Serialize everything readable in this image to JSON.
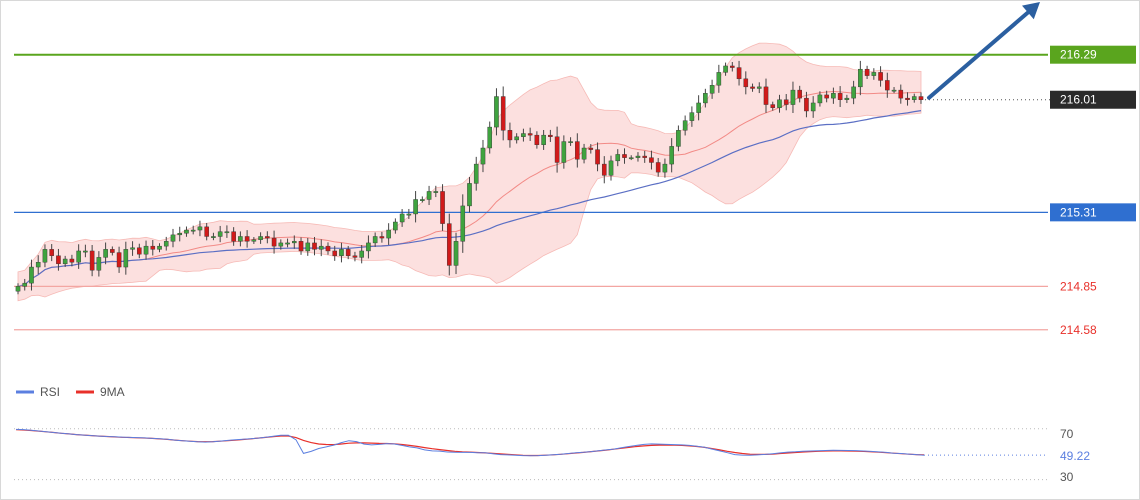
{
  "chart_data": [
    {
      "type": "candlestick",
      "title": "",
      "price_range": [
        214.33,
        216.63
      ],
      "levels": [
        {
          "value": 216.29,
          "label": "216.29",
          "kind": "resistance",
          "color": "#5aa51e"
        },
        {
          "value": 216.01,
          "label": "216.01",
          "kind": "current-price",
          "color": "#2a2a2a"
        },
        {
          "value": 215.31,
          "label": "215.31",
          "kind": "pivot",
          "color": "#2f6fd0"
        },
        {
          "value": 214.85,
          "label": "214.85",
          "kind": "support",
          "color": "#e8302a"
        },
        {
          "value": 214.58,
          "label": "214.58",
          "kind": "support",
          "color": "#e8302a"
        }
      ],
      "closes": [
        214.85,
        214.87,
        214.97,
        215.0,
        215.08,
        215.04,
        214.99,
        215.02,
        215.0,
        215.07,
        215.07,
        214.95,
        215.03,
        215.08,
        215.06,
        214.97,
        215.08,
        215.09,
        215.05,
        215.1,
        215.08,
        215.1,
        215.13,
        215.17,
        215.18,
        215.2,
        215.2,
        215.22,
        215.16,
        215.16,
        215.19,
        215.19,
        215.13,
        215.16,
        215.13,
        215.14,
        215.16,
        215.15,
        215.1,
        215.12,
        215.12,
        215.13,
        215.07,
        215.12,
        215.08,
        215.1,
        215.07,
        215.04,
        215.08,
        215.04,
        215.03,
        215.07,
        215.12,
        215.16,
        215.15,
        215.2,
        215.25,
        215.3,
        215.3,
        215.39,
        215.39,
        215.44,
        215.44,
        215.24,
        214.98,
        215.13,
        215.35,
        215.49,
        215.61,
        215.71,
        215.84,
        216.03,
        215.82,
        215.76,
        215.78,
        215.8,
        215.79,
        215.73,
        215.79,
        215.78,
        215.62,
        215.75,
        215.75,
        215.64,
        215.71,
        215.7,
        215.61,
        215.54,
        215.63,
        215.67,
        215.65,
        215.65,
        215.66,
        215.65,
        215.62,
        215.56,
        215.61,
        215.72,
        215.82,
        215.88,
        215.93,
        215.99,
        216.05,
        216.1,
        216.18,
        216.22,
        216.21,
        216.14,
        216.09,
        216.08,
        216.09,
        215.98,
        215.96,
        216.01,
        215.98,
        216.07,
        216.02,
        215.94,
        215.99,
        216.04,
        216.02,
        216.05,
        216.01,
        216.02,
        216.09,
        216.2,
        216.16,
        216.18,
        216.13,
        216.07,
        216.07,
        216.02,
        216.01,
        216.03,
        216.01
      ],
      "bollinger_bands": true,
      "moving_averages": [
        {
          "name": "",
          "color": "#5b6fc4"
        },
        {
          "name": "",
          "color": "#f28a86"
        }
      ],
      "forecast_arrow": {
        "direction": "up",
        "color": "#2b5fa0"
      }
    },
    {
      "type": "line",
      "title": "",
      "legend": [
        {
          "name": "RSI",
          "color": "#5b7fe0"
        },
        {
          "name": "9MA",
          "color": "#e8302a"
        }
      ],
      "legend_position": "top-left",
      "ylim": [
        25,
        80
      ],
      "yticks": [
        {
          "value": 70,
          "label": "70"
        },
        {
          "value": 30,
          "label": "30"
        }
      ],
      "current_value": {
        "value": 49.22,
        "label": "49.22",
        "color": "#5b7fe0"
      },
      "rsi_values": [
        69.5,
        69.3,
        68.8,
        68.2,
        67.6,
        67.0,
        66.5,
        65.9,
        65.4,
        65.0,
        64.6,
        64.2,
        63.9,
        63.7,
        63.4,
        63.2,
        63.0,
        62.8,
        62.4,
        62.1,
        61.7,
        61.1,
        60.6,
        60.1,
        59.7,
        59.5,
        59.7,
        60.3,
        60.8,
        61.3,
        61.7,
        62.2,
        62.6,
        63.3,
        64.1,
        64.8,
        64.9,
        61.3,
        50.6,
        52.2,
        54.5,
        55.7,
        57.1,
        59.1,
        60.6,
        59.9,
        57.9,
        57.3,
        57.7,
        58.3,
        58.0,
        56.9,
        55.7,
        54.9,
        53.4,
        52.6,
        52.4,
        51.7,
        51.5,
        51.4,
        51.4,
        51.2,
        51.1,
        50.4,
        49.7,
        49.4,
        49.1,
        48.9,
        48.8,
        48.9,
        49.2,
        49.6,
        50.0,
        50.5,
        51.1,
        51.5,
        52.0,
        52.7,
        53.4,
        54.0,
        55.0,
        56.0,
        56.9,
        57.7,
        58.1,
        57.9,
        57.7,
        57.5,
        57.3,
        56.9,
        56.2,
        55.4,
        54.0,
        52.6,
        51.2,
        49.7,
        49.3,
        49.1,
        49.4,
        49.8,
        50.4,
        51.0,
        51.6,
        51.9,
        52.3,
        52.5,
        52.7,
        52.9,
        53.1,
        53.0,
        52.9,
        52.8,
        52.5,
        52.2,
        51.8,
        51.4,
        50.8,
        50.5,
        50.1,
        49.7,
        49.22
      ],
      "ma9_values": [
        69.3,
        69.0,
        68.6,
        68.1,
        67.6,
        67.0,
        66.4,
        65.9,
        65.4,
        65.0,
        64.6,
        64.2,
        63.9,
        63.6,
        63.3,
        63.1,
        62.9,
        62.7,
        62.4,
        62.0,
        61.6,
        61.1,
        60.6,
        60.2,
        59.9,
        59.8,
        59.9,
        60.2,
        60.6,
        61.0,
        61.5,
        62.0,
        62.6,
        63.2,
        63.8,
        64.3,
        64.3,
        63.0,
        60.8,
        59.1,
        58.0,
        57.6,
        57.5,
        58.0,
        58.6,
        58.9,
        58.9,
        58.7,
        58.5,
        58.4,
        58.1,
        57.6,
        56.9,
        56.1,
        55.2,
        54.3,
        53.6,
        52.9,
        52.3,
        51.9,
        51.6,
        51.3,
        51.0,
        50.6,
        50.2,
        49.8,
        49.4,
        49.1,
        49.0,
        49.0,
        49.2,
        49.5,
        49.9,
        50.4,
        50.9,
        51.4,
        52.0,
        52.6,
        53.2,
        53.9,
        54.6,
        55.3,
        56.0,
        56.5,
        56.9,
        57.1,
        57.2,
        57.1,
        56.9,
        56.5,
        56.0,
        55.3,
        54.4,
        53.4,
        52.3,
        51.3,
        50.5,
        50.0,
        49.8,
        49.8,
        50.1,
        50.5,
        50.9,
        51.3,
        51.7,
        52.0,
        52.3,
        52.5,
        52.6,
        52.6,
        52.5,
        52.4,
        52.2,
        51.9,
        51.6,
        51.2,
        50.8,
        50.4,
        50.0,
        49.7,
        49.5
      ]
    }
  ],
  "ui": {
    "arrow_icon": "up-right-arrow-icon"
  }
}
